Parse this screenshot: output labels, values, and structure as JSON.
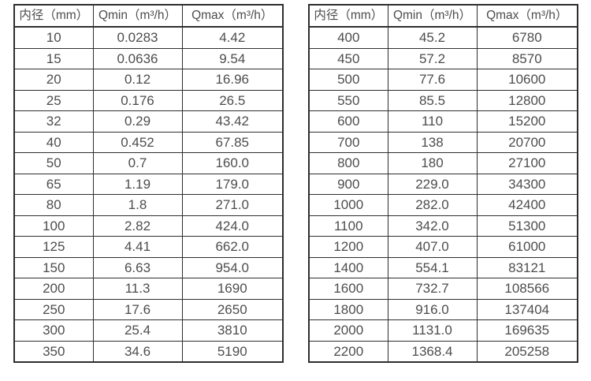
{
  "page": {
    "background": "#ffffff"
  },
  "colors": {
    "border": "#2e2e2e",
    "text": "#4d4d4d"
  },
  "chart_data": [
    {
      "type": "table",
      "title": "",
      "columns": [
        "内径（mm）",
        "Qmin（m³/h）",
        "Qmax（m³/h）"
      ],
      "rows": [
        [
          "10",
          "0.0283",
          "4.42"
        ],
        [
          "15",
          "0.0636",
          "9.54"
        ],
        [
          "20",
          "0.12",
          "16.96"
        ],
        [
          "25",
          "0.176",
          "26.5"
        ],
        [
          "32",
          "0.29",
          "43.42"
        ],
        [
          "40",
          "0.452",
          "67.85"
        ],
        [
          "50",
          "0.7",
          "160.0"
        ],
        [
          "65",
          "1.19",
          "179.0"
        ],
        [
          "80",
          "1.8",
          "271.0"
        ],
        [
          "100",
          "2.82",
          "424.0"
        ],
        [
          "125",
          "4.41",
          "662.0"
        ],
        [
          "150",
          "6.63",
          "954.0"
        ],
        [
          "200",
          "11.3",
          "1690"
        ],
        [
          "250",
          "17.6",
          "2650"
        ],
        [
          "300",
          "25.4",
          "3810"
        ],
        [
          "350",
          "34.6",
          "5190"
        ]
      ]
    },
    {
      "type": "table",
      "title": "",
      "columns": [
        "内径（mm）",
        "Qmin（m³/h）",
        "Qmax（m³/h）"
      ],
      "rows": [
        [
          "400",
          "45.2",
          "6780"
        ],
        [
          "450",
          "57.2",
          "8570"
        ],
        [
          "500",
          "77.6",
          "10600"
        ],
        [
          "550",
          "85.5",
          "12800"
        ],
        [
          "600",
          "110",
          "15200"
        ],
        [
          "700",
          "138",
          "20700"
        ],
        [
          "800",
          "180",
          "27100"
        ],
        [
          "900",
          "229.0",
          "34300"
        ],
        [
          "1000",
          "282.0",
          "42400"
        ],
        [
          "1100",
          "342.0",
          "51300"
        ],
        [
          "1200",
          "407.0",
          "61000"
        ],
        [
          "1400",
          "554.1",
          "83121"
        ],
        [
          "1600",
          "732.7",
          "108566"
        ],
        [
          "1800",
          "916.0",
          "137404"
        ],
        [
          "2000",
          "1131.0",
          "169635"
        ],
        [
          "2200",
          "1368.4",
          "205258"
        ]
      ]
    }
  ]
}
